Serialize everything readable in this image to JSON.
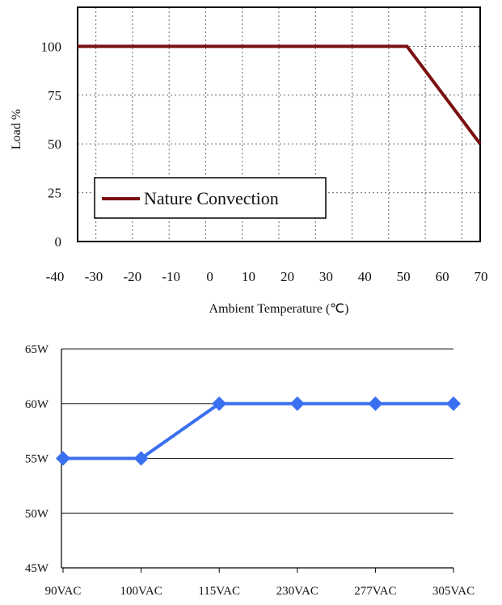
{
  "chart_data": [
    {
      "type": "line",
      "xlabel": "Ambient Temperature (℃)",
      "ylabel": "Load %",
      "x_ticks": [
        "-40",
        "-30",
        "-20",
        "-10",
        "0",
        "10",
        "20",
        "30",
        "40",
        "50",
        "60",
        "70"
      ],
      "y_ticks": [
        "100",
        "75",
        "50",
        "25",
        "0"
      ],
      "xlim": [
        -40,
        70
      ],
      "ylim": [
        0,
        120
      ],
      "grid": "dotted",
      "legend_placement": "bottom-left",
      "series": [
        {
          "name": "Nature Convection",
          "color": "#7a1010",
          "x": [
            -40,
            50,
            70
          ],
          "y": [
            100,
            100,
            50
          ]
        }
      ]
    },
    {
      "type": "line",
      "categories": [
        "90VAC",
        "100VAC",
        "115VAC",
        "230VAC",
        "277VAC",
        "305VAC"
      ],
      "y_ticks": [
        "65W",
        "60W",
        "55W",
        "50W",
        "45W"
      ],
      "ylim": [
        45,
        65
      ],
      "grid": "horizontal",
      "series": [
        {
          "color": "#3a6ff0",
          "marker": "diamond",
          "values": [
            55,
            55,
            60,
            60,
            60,
            60
          ]
        }
      ]
    }
  ]
}
